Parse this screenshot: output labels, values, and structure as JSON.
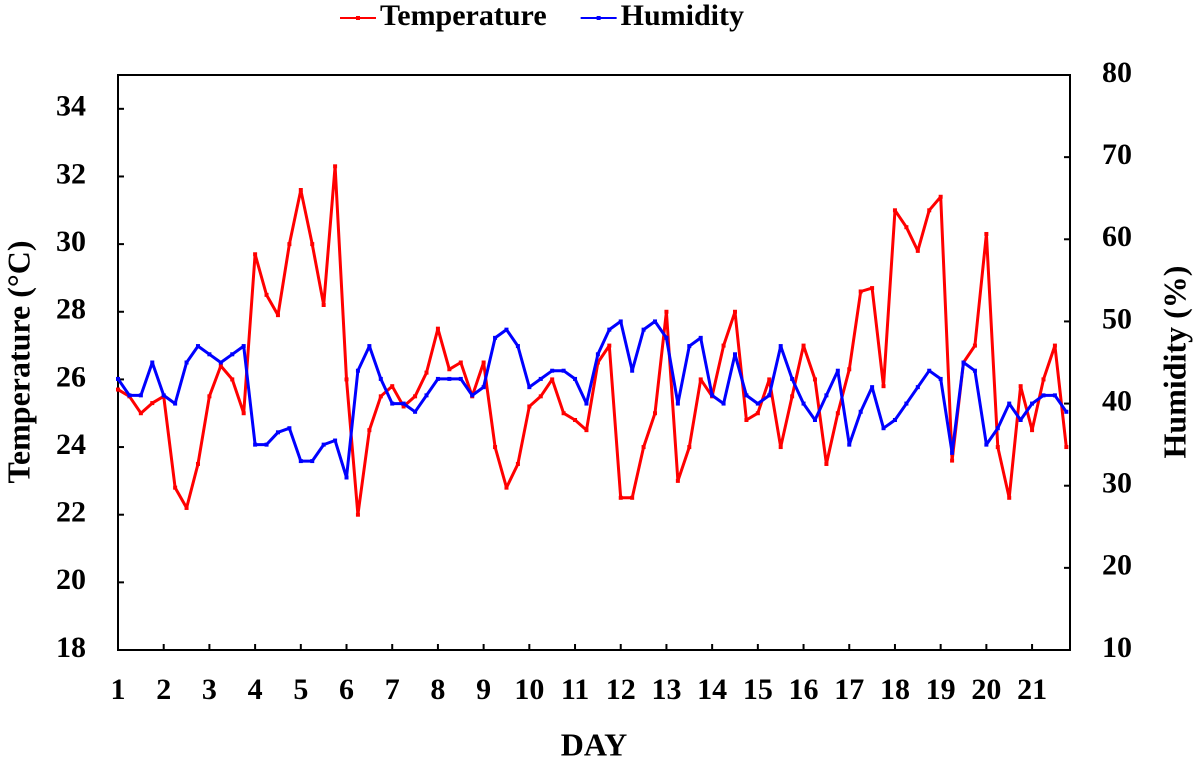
{
  "chart_data": {
    "type": "line",
    "xlabel": "DAY",
    "ylabel": "Temperature (°C)",
    "y2label": "Humidity (%)",
    "x": [
      1,
      1.25,
      1.5,
      1.75,
      2,
      2.25,
      2.5,
      2.75,
      3,
      3.25,
      3.5,
      3.75,
      4,
      4.25,
      4.5,
      4.75,
      5,
      5.25,
      5.5,
      5.75,
      6,
      6.25,
      6.5,
      6.75,
      7,
      7.25,
      7.5,
      7.75,
      8,
      8.25,
      8.5,
      8.75,
      9,
      9.25,
      9.5,
      9.75,
      10,
      10.25,
      10.5,
      10.75,
      11,
      11.25,
      11.5,
      11.75,
      12,
      12.25,
      12.5,
      12.75,
      13,
      13.25,
      13.5,
      13.75,
      14,
      14.25,
      14.5,
      14.75,
      15,
      15.25,
      15.5,
      15.75,
      16,
      16.25,
      16.5,
      16.75,
      17,
      17.25,
      17.5,
      17.75,
      18,
      18.25,
      18.5,
      18.75,
      19,
      19.25,
      19.5,
      19.75,
      20,
      20.25,
      20.5,
      20.75,
      21,
      21.25,
      21.5,
      21.75
    ],
    "series": [
      {
        "name": "Temperature",
        "color": "#ff0000",
        "axis": "y",
        "values": [
          25.7,
          25.5,
          25.0,
          25.3,
          25.5,
          22.8,
          22.2,
          23.5,
          25.5,
          26.4,
          26,
          25,
          29.7,
          28.5,
          27.9,
          30,
          31.6,
          30,
          28.2,
          32.3,
          26,
          22,
          24.5,
          25.5,
          25.8,
          25.2,
          25.5,
          26.2,
          27.5,
          26.3,
          26.5,
          25.5,
          26.5,
          24,
          22.8,
          23.5,
          25.2,
          25.5,
          26,
          25,
          24.8,
          24.5,
          26.5,
          27,
          22.5,
          22.5,
          24,
          25,
          28,
          23,
          24,
          26,
          25.5,
          27,
          28,
          24.8,
          25,
          26,
          24,
          25.5,
          27,
          26,
          23.5,
          25,
          26.3,
          28.6,
          28.7,
          25.8,
          31,
          30.5,
          29.8,
          31,
          31.4,
          23.6,
          26.5,
          27,
          30.3,
          24,
          22.5,
          25.8,
          24.5,
          26,
          27,
          24
        ]
      },
      {
        "name": "Humidity",
        "color": "#0000ff",
        "axis": "y2",
        "values": [
          43,
          41,
          41,
          45,
          41,
          40,
          45,
          47,
          46,
          45,
          46,
          47,
          35,
          35,
          36.5,
          37,
          33,
          33,
          35,
          35.5,
          31,
          44,
          47,
          43,
          40,
          40,
          39,
          41,
          43,
          43,
          43,
          41,
          42,
          48,
          49,
          47,
          42,
          43,
          44,
          44,
          43,
          40,
          46,
          49,
          50,
          44,
          49,
          50,
          48,
          40,
          47,
          48,
          41,
          40,
          46,
          41,
          40,
          41,
          47,
          43,
          40,
          38,
          41,
          44,
          35,
          39,
          42,
          37,
          38,
          40,
          42,
          44,
          43,
          34,
          45,
          44,
          35,
          37,
          40,
          38,
          40,
          41,
          41,
          39
        ]
      }
    ],
    "xlim": [
      1,
      21.83
    ],
    "xticks": [
      1,
      2,
      3,
      4,
      5,
      6,
      7,
      8,
      9,
      10,
      11,
      12,
      13,
      14,
      15,
      16,
      17,
      18,
      19,
      20,
      21
    ],
    "ylim": [
      18,
      35
    ],
    "yticks": [
      18,
      20,
      22,
      24,
      26,
      28,
      30,
      32,
      34
    ],
    "y2lim": [
      10,
      80
    ],
    "y2ticks": [
      10,
      20,
      30,
      40,
      50,
      60,
      70,
      80
    ],
    "grid": false,
    "legend": "top"
  }
}
